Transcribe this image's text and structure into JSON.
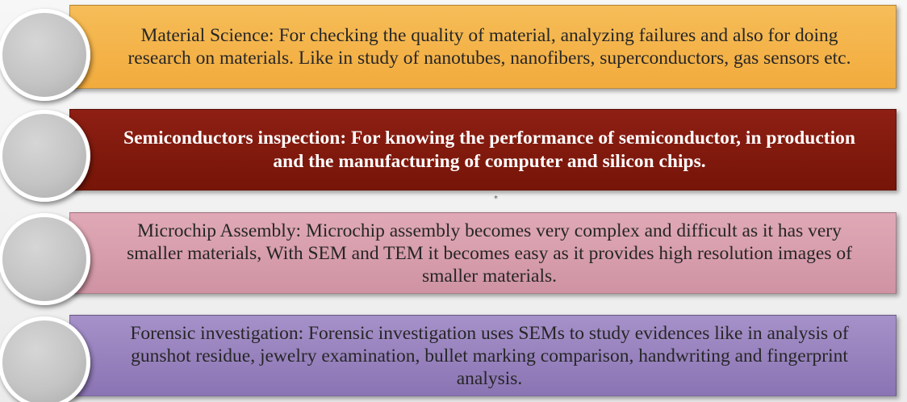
{
  "items": [
    {
      "text": "Material Science: For checking the quality of material, analyzing failures and also for doing research on materials. Like in study of nanotubes, nanofibers, superconductors, gas sensors etc.",
      "color": "#f4b54a"
    },
    {
      "text": "Semiconductors inspection: For knowing the performance of semiconductor, in production and the manufacturing of computer and silicon chips.",
      "color": "#821a0f"
    },
    {
      "text": "Microchip Assembly: Microchip assembly becomes very complex and difficult as it has very smaller materials, With SEM and TEM it becomes easy as it provides high resolution images of smaller materials.",
      "color": "#d89dac"
    },
    {
      "text": "Forensic investigation: Forensic investigation uses SEMs to study evidences like in analysis of gunshot residue, jewelry examination, bullet marking comparison, handwriting and fingerprint analysis.",
      "color": "#9882be"
    }
  ],
  "cursor_mark": "*"
}
